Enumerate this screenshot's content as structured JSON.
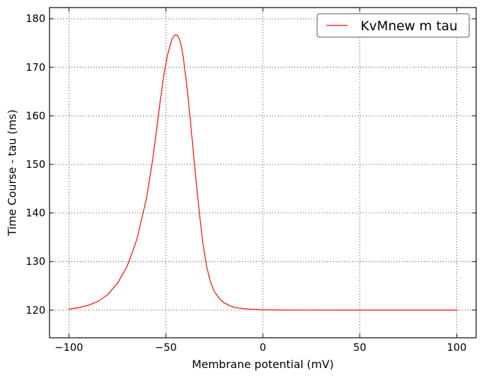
{
  "chart_data": {
    "type": "line",
    "title": "",
    "xlabel": "Membrane potential (mV)",
    "ylabel": "Time Course - tau (ms)",
    "xlim": [
      -110,
      110
    ],
    "ylim": [
      114.3,
      182.3
    ],
    "xticks": [
      -100,
      -50,
      0,
      50,
      100
    ],
    "xtick_labels": [
      "−100",
      "−50",
      "0",
      "50",
      "100"
    ],
    "yticks": [
      120,
      130,
      140,
      150,
      160,
      170,
      180
    ],
    "ytick_labels": [
      "120",
      "130",
      "140",
      "150",
      "160",
      "170",
      "180"
    ],
    "grid": true,
    "legend_position": "top-right",
    "series": [
      {
        "name": "KvMnew m tau",
        "color": "#ff0000",
        "x": [
          -100,
          -95,
          -90,
          -85,
          -80,
          -75,
          -70,
          -65,
          -60,
          -57,
          -55,
          -53,
          -51,
          -49,
          -47,
          -46,
          -45,
          -44,
          -43,
          -42,
          -41,
          -39,
          -37,
          -35,
          -33,
          -31,
          -29,
          -27,
          -25,
          -22,
          -20,
          -17,
          -15,
          -12,
          -10,
          -5,
          0,
          5,
          10,
          20,
          40,
          60,
          80,
          100
        ],
        "y": [
          120.2,
          120.5,
          121.0,
          121.8,
          123.2,
          125.5,
          129.0,
          134.5,
          143.0,
          150.5,
          156.5,
          162.8,
          168.5,
          172.8,
          175.6,
          176.4,
          176.7,
          176.6,
          175.8,
          174.3,
          172.0,
          165.5,
          157.5,
          149.0,
          141.0,
          134.0,
          129.0,
          125.8,
          123.8,
          122.2,
          121.5,
          120.9,
          120.6,
          120.4,
          120.3,
          120.15,
          120.08,
          120.04,
          120.02,
          120.01,
          120.0,
          120.0,
          120.0,
          120.0
        ]
      }
    ]
  }
}
